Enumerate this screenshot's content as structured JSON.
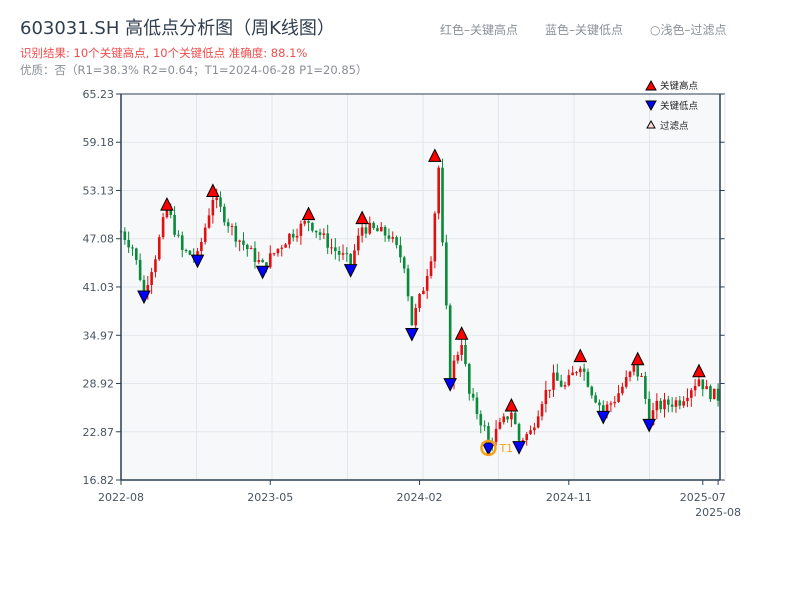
{
  "title": "603031.SH 高低点分析图（周K线图）",
  "result_line": "识别结果: 10个关键高点, 10个关键低点   准确度: 88.1%",
  "quality_line": "优质：否（R1=38.3%  R2=0.64；T1=2024-06-28 P1=20.85）",
  "top_legend": {
    "red": "红色–关键高点",
    "blue": "蓝色–关键低点",
    "light": "○浅色–过滤点"
  },
  "colors": {
    "up": "#e01010",
    "down": "#0a8a3a",
    "high_marker": "#ff0000",
    "low_marker": "#0000ff",
    "t1": "#f5a31a",
    "axis": "#2a3f54",
    "plot_bg": "#f6f8fa",
    "grid": "#e3e7eb"
  },
  "chart_data": {
    "type": "candlestick",
    "title": "603031.SH 高低点分析图（周K线图）",
    "ylim": [
      16.82,
      65.23
    ],
    "yticks": [
      "16.82",
      "22.87",
      "28.92",
      "34.97",
      "41.03",
      "47.08",
      "53.13",
      "59.18",
      "65.23"
    ],
    "xtick_labels": [
      {
        "label": "2022-08",
        "week": 0
      },
      {
        "label": "2023-05",
        "week": 39
      },
      {
        "label": "2024-02",
        "week": 78
      },
      {
        "label": "2024-11",
        "week": 117
      },
      {
        "label": "2025-07",
        "week": 152
      },
      {
        "label": "2025-08",
        "week": 156
      }
    ],
    "total_weeks": 157,
    "price_path": [
      [
        0,
        48
      ],
      [
        3,
        46
      ],
      [
        6,
        40.5
      ],
      [
        9,
        45
      ],
      [
        12,
        51
      ],
      [
        16,
        45.5
      ],
      [
        20,
        44.8
      ],
      [
        24,
        52.3
      ],
      [
        30,
        47.5
      ],
      [
        37,
        43.6
      ],
      [
        44,
        47.5
      ],
      [
        49,
        49.3
      ],
      [
        55,
        46
      ],
      [
        60,
        44
      ],
      [
        63,
        48.6
      ],
      [
        70,
        47.5
      ],
      [
        74,
        44
      ],
      [
        76,
        36.5
      ],
      [
        79,
        41
      ],
      [
        81,
        45
      ],
      [
        83,
        56
      ],
      [
        84,
        46
      ],
      [
        86,
        30
      ],
      [
        89,
        34.3
      ],
      [
        91,
        27.5
      ],
      [
        95,
        23.2
      ],
      [
        96,
        21.5
      ],
      [
        99,
        23.5
      ],
      [
        102,
        25.5
      ],
      [
        104,
        21.8
      ],
      [
        107,
        22.8
      ],
      [
        110,
        27
      ],
      [
        113,
        29.5
      ],
      [
        116,
        28.5
      ],
      [
        120,
        31.5
      ],
      [
        123,
        28
      ],
      [
        126,
        25.5
      ],
      [
        129,
        27
      ],
      [
        134,
        30.8
      ],
      [
        136,
        29.5
      ],
      [
        138,
        24.5
      ],
      [
        140,
        26
      ],
      [
        146,
        26.8
      ],
      [
        151,
        29.6
      ],
      [
        153,
        28
      ],
      [
        156,
        27.2
      ]
    ],
    "key_highs": [
      [
        12,
        51.3
      ],
      [
        24,
        53.0
      ],
      [
        49,
        50.1
      ],
      [
        63,
        49.6
      ],
      [
        82,
        57.4
      ],
      [
        89,
        35.1
      ],
      [
        102,
        26.1
      ],
      [
        120,
        32.3
      ],
      [
        135,
        31.9
      ],
      [
        151,
        30.4
      ]
    ],
    "key_lows": [
      [
        6,
        39.9
      ],
      [
        20,
        44.4
      ],
      [
        37,
        43.0
      ],
      [
        60,
        43.2
      ],
      [
        76,
        35.2
      ],
      [
        86,
        28.9
      ],
      [
        96,
        20.85
      ],
      [
        104,
        21.0
      ],
      [
        126,
        24.8
      ],
      [
        138,
        23.8
      ]
    ],
    "t1": {
      "label": "T1",
      "week": 96,
      "price": 20.85
    },
    "legend": {
      "high": "关键高点",
      "low": "关键低点",
      "filtered": "过滤点"
    }
  }
}
